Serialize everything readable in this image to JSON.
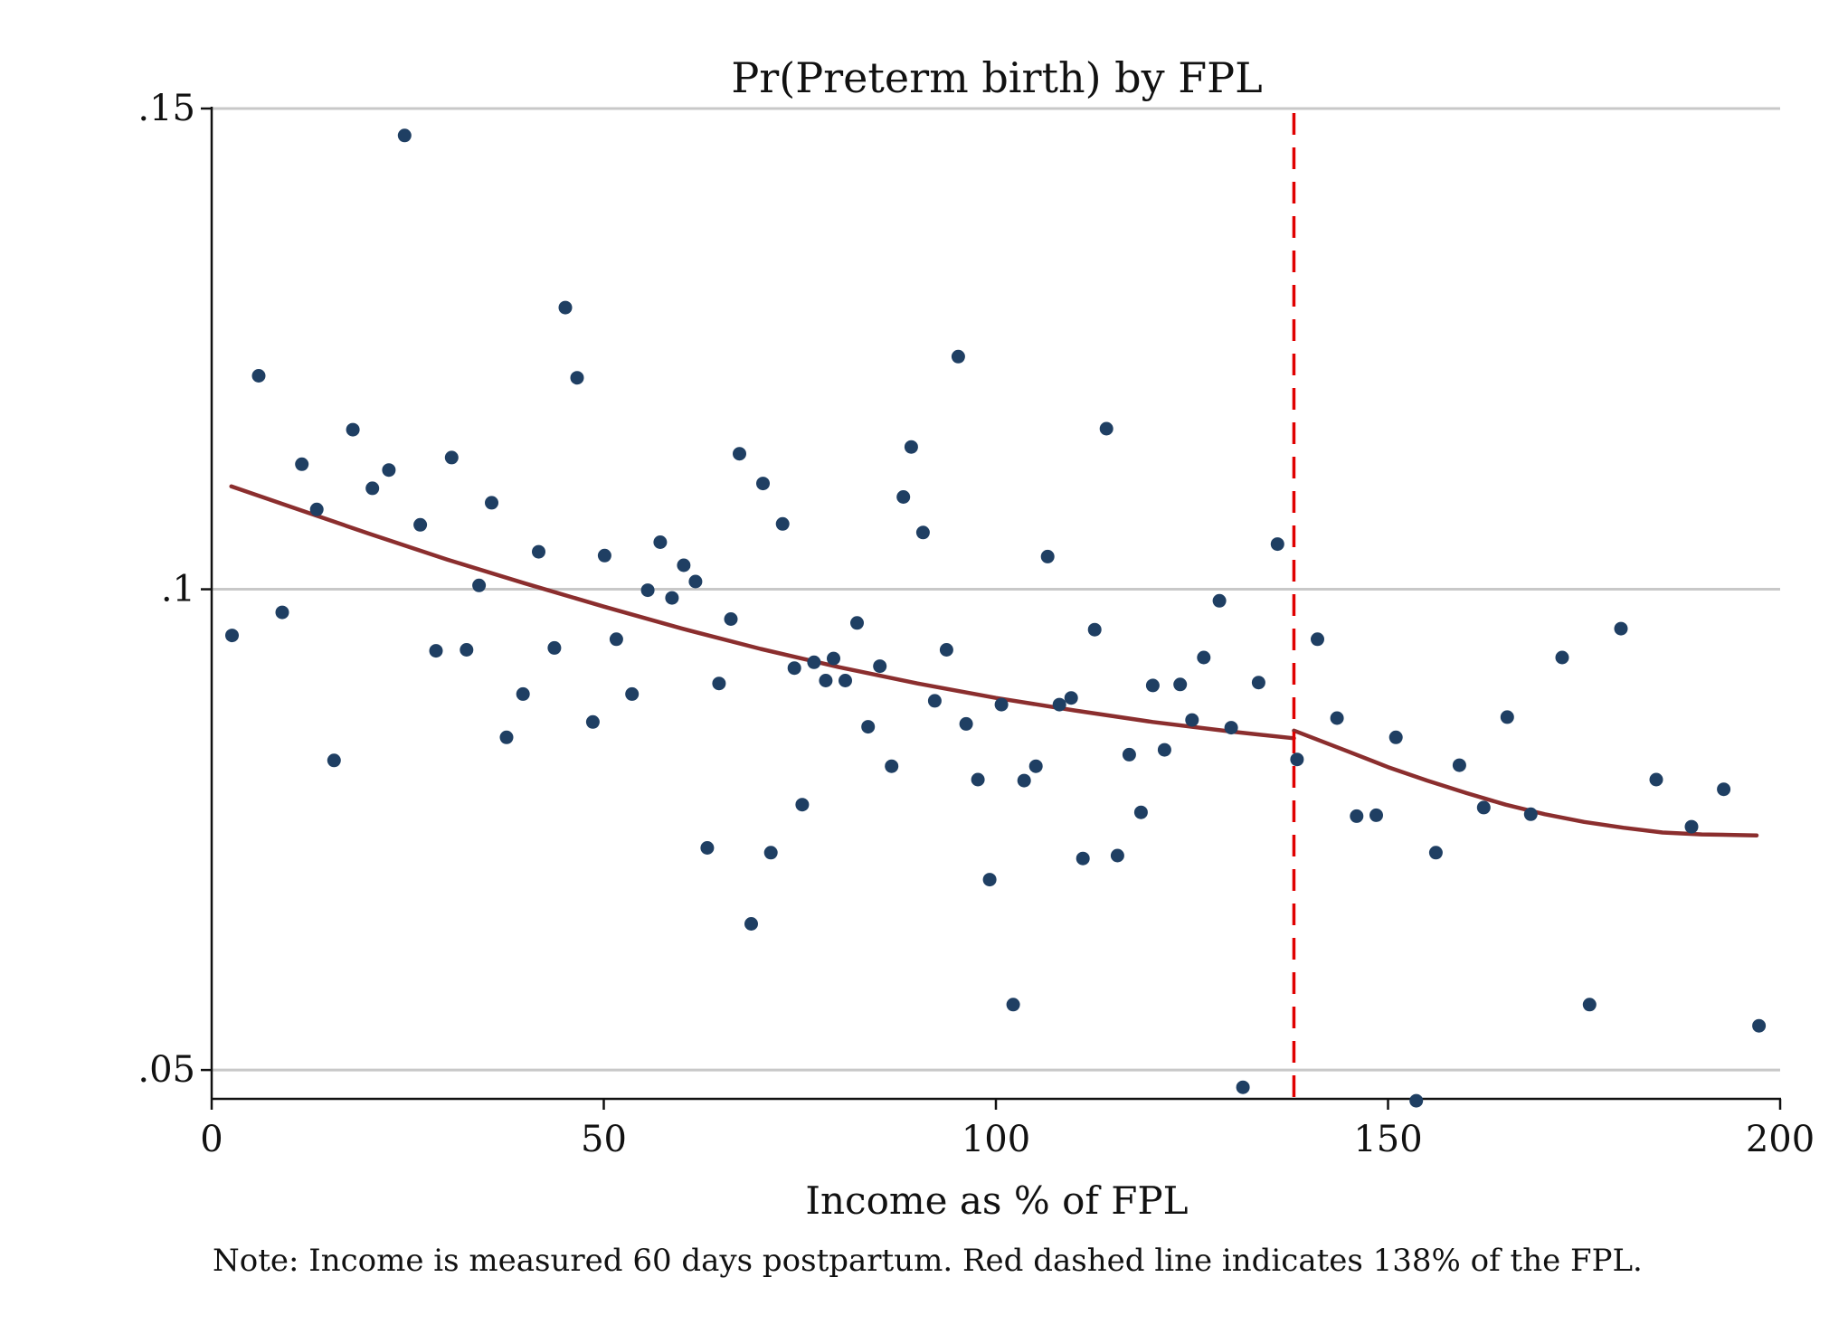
{
  "chart_data": {
    "type": "scatter",
    "title": "Pr(Preterm birth) by FPL",
    "xlabel": "Income as % of FPL",
    "ylabel": "",
    "note": "Note: Income is measured 60 days postpartum. Red dashed line indicates 138% of the FPL.",
    "xlim": [
      0,
      200
    ],
    "ylim": [
      0.047,
      0.15
    ],
    "xticks": [
      0,
      50,
      100,
      150,
      200
    ],
    "xtick_labels": [
      "0",
      "50",
      "100",
      "150",
      "200"
    ],
    "yticks": [
      0.05,
      0.1,
      0.15
    ],
    "ytick_labels": [
      ".05",
      ".1",
      ".15"
    ],
    "grid": true,
    "cutoff_x": 138,
    "colors": {
      "points": "#1f3f63",
      "fit": "#8b2e2e",
      "cutoff": "#e00000",
      "grid": "#c8c8c8",
      "axis": "#111111"
    },
    "series": [
      {
        "type": "scatter",
        "points": [
          [
            2.6,
            0.0952
          ],
          [
            6.0,
            0.1222
          ],
          [
            9.0,
            0.0976
          ],
          [
            11.5,
            0.113
          ],
          [
            13.4,
            0.1083
          ],
          [
            15.6,
            0.0822
          ],
          [
            18.0,
            0.1166
          ],
          [
            20.5,
            0.1105
          ],
          [
            22.6,
            0.1124
          ],
          [
            24.6,
            0.1472
          ],
          [
            26.6,
            0.1067
          ],
          [
            28.6,
            0.0936
          ],
          [
            30.6,
            0.1137
          ],
          [
            32.5,
            0.0937
          ],
          [
            34.1,
            0.1004
          ],
          [
            35.7,
            0.109
          ],
          [
            37.6,
            0.0846
          ],
          [
            39.7,
            0.0891
          ],
          [
            41.7,
            0.1039
          ],
          [
            43.7,
            0.0939
          ],
          [
            45.1,
            0.1293
          ],
          [
            46.6,
            0.122
          ],
          [
            48.6,
            0.0862
          ],
          [
            50.1,
            0.1035
          ],
          [
            51.6,
            0.0948
          ],
          [
            53.6,
            0.0891
          ],
          [
            55.6,
            0.0999
          ],
          [
            57.2,
            0.1049
          ],
          [
            58.7,
            0.0991
          ],
          [
            60.2,
            0.1025
          ],
          [
            61.7,
            0.1008
          ],
          [
            63.2,
            0.0731
          ],
          [
            64.7,
            0.0902
          ],
          [
            66.2,
            0.0969
          ],
          [
            67.3,
            0.1141
          ],
          [
            68.8,
            0.0652
          ],
          [
            70.3,
            0.111
          ],
          [
            71.3,
            0.0726
          ],
          [
            72.8,
            0.1068
          ],
          [
            74.3,
            0.0918
          ],
          [
            75.3,
            0.0776
          ],
          [
            76.8,
            0.0924
          ],
          [
            78.3,
            0.0905
          ],
          [
            79.3,
            0.0928
          ],
          [
            80.8,
            0.0905
          ],
          [
            82.3,
            0.0965
          ],
          [
            83.7,
            0.0857
          ],
          [
            85.2,
            0.092
          ],
          [
            86.7,
            0.0816
          ],
          [
            88.2,
            0.1096
          ],
          [
            89.2,
            0.1148
          ],
          [
            90.7,
            0.1059
          ],
          [
            92.2,
            0.0884
          ],
          [
            93.7,
            0.0937
          ],
          [
            95.2,
            0.1242
          ],
          [
            96.2,
            0.086
          ],
          [
            97.7,
            0.0802
          ],
          [
            99.2,
            0.0698
          ],
          [
            100.7,
            0.088
          ],
          [
            102.2,
            0.0568
          ],
          [
            103.6,
            0.0801
          ],
          [
            105.1,
            0.0816
          ],
          [
            106.6,
            0.1034
          ],
          [
            108.1,
            0.088
          ],
          [
            109.6,
            0.0887
          ],
          [
            111.1,
            0.072
          ],
          [
            112.6,
            0.0958
          ],
          [
            114.1,
            0.1167
          ],
          [
            115.5,
            0.0723
          ],
          [
            117.0,
            0.0828
          ],
          [
            118.5,
            0.0768
          ],
          [
            120.0,
            0.09
          ],
          [
            121.5,
            0.0833
          ],
          [
            123.5,
            0.0901
          ],
          [
            125.0,
            0.0864
          ],
          [
            126.5,
            0.0929
          ],
          [
            128.5,
            0.0988
          ],
          [
            130.0,
            0.0856
          ],
          [
            131.5,
            0.0482
          ],
          [
            133.5,
            0.0903
          ],
          [
            135.9,
            0.1047
          ],
          [
            138.4,
            0.0823
          ],
          [
            141.0,
            0.0948
          ],
          [
            143.5,
            0.0866
          ],
          [
            146.0,
            0.0764
          ],
          [
            148.5,
            0.0765
          ],
          [
            151.0,
            0.0846
          ],
          [
            153.6,
            0.0468
          ],
          [
            156.1,
            0.0726
          ],
          [
            159.1,
            0.0817
          ],
          [
            162.2,
            0.0773
          ],
          [
            165.2,
            0.0867
          ],
          [
            168.2,
            0.0766
          ],
          [
            172.2,
            0.0929
          ],
          [
            175.7,
            0.0568
          ],
          [
            179.7,
            0.0959
          ],
          [
            184.2,
            0.0802
          ],
          [
            188.7,
            0.0753
          ],
          [
            192.8,
            0.0792
          ],
          [
            197.3,
            0.0546
          ]
        ]
      },
      {
        "type": "line",
        "segment": "below-cutoff",
        "points": [
          [
            2.5,
            0.1107
          ],
          [
            10,
            0.1086
          ],
          [
            20,
            0.1058
          ],
          [
            30,
            0.1031
          ],
          [
            40,
            0.1006
          ],
          [
            50,
            0.0982
          ],
          [
            60,
            0.0959
          ],
          [
            70,
            0.0938
          ],
          [
            80,
            0.0919
          ],
          [
            90,
            0.0902
          ],
          [
            100,
            0.0887
          ],
          [
            110,
            0.0874
          ],
          [
            120,
            0.0862
          ],
          [
            130,
            0.0852
          ],
          [
            138,
            0.0845
          ]
        ]
      },
      {
        "type": "line",
        "segment": "above-cutoff",
        "points": [
          [
            138,
            0.0853
          ],
          [
            145,
            0.0831
          ],
          [
            150,
            0.0815
          ],
          [
            155,
            0.0801
          ],
          [
            160,
            0.0788
          ],
          [
            165,
            0.0776
          ],
          [
            170,
            0.0766
          ],
          [
            175,
            0.0758
          ],
          [
            180,
            0.0752
          ],
          [
            185,
            0.0747
          ],
          [
            190,
            0.0745
          ],
          [
            197,
            0.0744
          ]
        ]
      }
    ]
  }
}
